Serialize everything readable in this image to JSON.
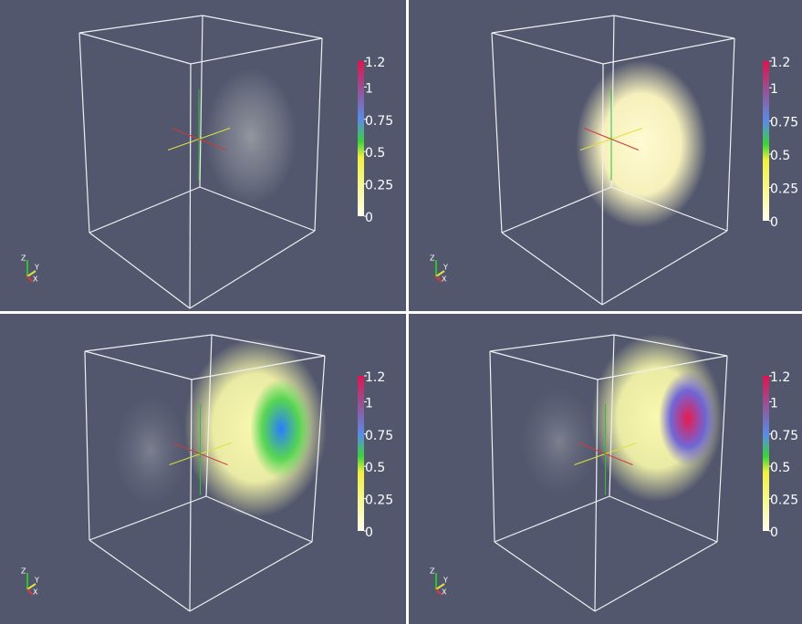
{
  "panels": [
    {
      "colorbar": {
        "labels": [
          "1.2",
          "1",
          "0.75",
          "0.5",
          "0.25",
          "0"
        ]
      },
      "axes": {
        "z": "Z",
        "y": "Y",
        "x": "X"
      }
    },
    {
      "colorbar": {
        "labels": [
          "1.2",
          "1",
          "0.75",
          "0.5",
          "0.25",
          "0"
        ]
      },
      "axes": {
        "z": "Z",
        "y": "Y",
        "x": "X"
      }
    },
    {
      "colorbar": {
        "labels": [
          "1.2",
          "1",
          "0.75",
          "0.5",
          "0.25",
          "0"
        ]
      },
      "axes": {
        "z": "Z",
        "y": "Y",
        "x": "X"
      }
    },
    {
      "colorbar": {
        "labels": [
          "1.2",
          "1",
          "0.75",
          "0.5",
          "0.25",
          "0"
        ]
      },
      "axes": {
        "z": "Z",
        "y": "Y",
        "x": "X"
      }
    }
  ]
}
